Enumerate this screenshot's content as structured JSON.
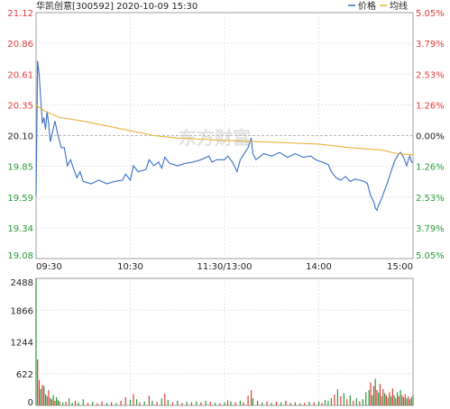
{
  "header": {
    "title": "华凯创意[300592] 2020-10-09 15:30",
    "legend_price": "价格",
    "legend_avg": "均线"
  },
  "watermark": "东方财富",
  "colors": {
    "price_line": "#3a6fc7",
    "avg_line": "#e8b23a",
    "up": "#e03b3b",
    "down": "#2a9a3a",
    "grid": "#dcdcdc",
    "axis": "#888888"
  },
  "chart_data": [
    {
      "type": "line",
      "title": "",
      "x_ticks": [
        "09:30",
        "10:30",
        "11:30/13:00",
        "14:00",
        "15:00"
      ],
      "y_ticks_left": [
        "21.12",
        "20.86",
        "20.61",
        "20.35",
        "20.10",
        "19.85",
        "19.59",
        "19.34",
        "19.08"
      ],
      "y_ticks_right": [
        "5.05%",
        "3.79%",
        "2.53%",
        "1.26%",
        "0.00%",
        "1.26%",
        "2.53%",
        "3.79%",
        "5.05%"
      ],
      "ylim": [
        19.08,
        21.12
      ],
      "prev_close": 20.1,
      "sessions_minutes": 240,
      "series": [
        {
          "name": "价格",
          "points": [
            [
              0,
              19.6
            ],
            [
              1,
              20.72
            ],
            [
              2,
              20.6
            ],
            [
              3,
              20.4
            ],
            [
              4,
              20.2
            ],
            [
              5,
              20.25
            ],
            [
              6,
              20.15
            ],
            [
              7,
              20.3
            ],
            [
              8,
              20.2
            ],
            [
              9,
              20.05
            ],
            [
              10,
              20.1
            ],
            [
              12,
              20.22
            ],
            [
              14,
              20.1
            ],
            [
              16,
              20.0
            ],
            [
              18,
              20.0
            ],
            [
              20,
              19.85
            ],
            [
              22,
              19.9
            ],
            [
              24,
              19.82
            ],
            [
              26,
              19.75
            ],
            [
              28,
              19.8
            ],
            [
              30,
              19.72
            ],
            [
              35,
              19.7
            ],
            [
              40,
              19.73
            ],
            [
              45,
              19.7
            ],
            [
              50,
              19.72
            ],
            [
              55,
              19.73
            ],
            [
              57,
              19.78
            ],
            [
              60,
              19.73
            ],
            [
              62,
              19.85
            ],
            [
              65,
              19.8
            ],
            [
              70,
              19.82
            ],
            [
              72,
              19.9
            ],
            [
              75,
              19.85
            ],
            [
              78,
              19.88
            ],
            [
              80,
              19.83
            ],
            [
              82,
              19.92
            ],
            [
              85,
              19.87
            ],
            [
              90,
              19.85
            ],
            [
              95,
              19.87
            ],
            [
              100,
              19.88
            ],
            [
              105,
              19.9
            ],
            [
              110,
              19.93
            ],
            [
              112,
              19.88
            ],
            [
              115,
              19.9
            ],
            [
              118,
              19.9
            ],
            [
              120,
              19.9
            ],
            [
              122,
              19.93
            ],
            [
              125,
              19.88
            ],
            [
              128,
              19.8
            ],
            [
              130,
              19.9
            ],
            [
              135,
              20.0
            ],
            [
              137,
              20.08
            ],
            [
              138,
              19.95
            ],
            [
              140,
              19.9
            ],
            [
              145,
              19.95
            ],
            [
              150,
              19.93
            ],
            [
              155,
              19.96
            ],
            [
              160,
              19.92
            ],
            [
              165,
              19.95
            ],
            [
              170,
              19.92
            ],
            [
              175,
              19.93
            ],
            [
              178,
              19.9
            ],
            [
              182,
              19.88
            ],
            [
              186,
              19.86
            ],
            [
              188,
              19.8
            ],
            [
              191,
              19.75
            ],
            [
              194,
              19.73
            ],
            [
              197,
              19.76
            ],
            [
              200,
              19.72
            ],
            [
              203,
              19.74
            ],
            [
              206,
              19.73
            ],
            [
              209,
              19.72
            ],
            [
              211,
              19.7
            ],
            [
              213,
              19.6
            ],
            [
              215,
              19.55
            ],
            [
              216,
              19.5
            ],
            [
              217,
              19.48
            ],
            [
              218,
              19.52
            ],
            [
              220,
              19.58
            ],
            [
              222,
              19.65
            ],
            [
              224,
              19.72
            ],
            [
              226,
              19.8
            ],
            [
              228,
              19.88
            ],
            [
              230,
              19.93
            ],
            [
              232,
              19.96
            ],
            [
              234,
              19.92
            ],
            [
              236,
              19.85
            ],
            [
              237,
              19.9
            ],
            [
              238,
              19.93
            ],
            [
              239,
              19.88
            ],
            [
              240,
              19.88
            ]
          ]
        },
        {
          "name": "均线",
          "points": [
            [
              0,
              20.35
            ],
            [
              6,
              20.3
            ],
            [
              15,
              20.25
            ],
            [
              30,
              20.22
            ],
            [
              45,
              20.18
            ],
            [
              60,
              20.14
            ],
            [
              75,
              20.1
            ],
            [
              90,
              20.08
            ],
            [
              105,
              20.07
            ],
            [
              120,
              20.06
            ],
            [
              140,
              20.05
            ],
            [
              160,
              20.04
            ],
            [
              180,
              20.03
            ],
            [
              200,
              20.0
            ],
            [
              220,
              19.98
            ],
            [
              230,
              19.95
            ],
            [
              240,
              19.94
            ]
          ]
        }
      ]
    },
    {
      "type": "bar",
      "title": "",
      "y_ticks": [
        "2488",
        "1866",
        "1244",
        "622",
        "0"
      ],
      "ylim": [
        0,
        2488
      ],
      "volume_bars": [
        [
          0,
          2488,
          "down"
        ],
        [
          1,
          900,
          "up"
        ],
        [
          2,
          500,
          "up"
        ],
        [
          3,
          320,
          "down"
        ],
        [
          4,
          400,
          "up"
        ],
        [
          5,
          380,
          "down"
        ],
        [
          6,
          220,
          "up"
        ],
        [
          7,
          180,
          "down"
        ],
        [
          8,
          300,
          "up"
        ],
        [
          9,
          150,
          "down"
        ],
        [
          10,
          120,
          "up"
        ],
        [
          11,
          200,
          "down"
        ],
        [
          12,
          90,
          "up"
        ],
        [
          13,
          160,
          "down"
        ],
        [
          14,
          110,
          "down"
        ],
        [
          15,
          80,
          "up"
        ],
        [
          17,
          60,
          "down"
        ],
        [
          19,
          70,
          "up"
        ],
        [
          21,
          140,
          "down"
        ],
        [
          23,
          50,
          "down"
        ],
        [
          25,
          90,
          "up"
        ],
        [
          27,
          60,
          "down"
        ],
        [
          30,
          120,
          "down"
        ],
        [
          33,
          50,
          "up"
        ],
        [
          36,
          70,
          "down"
        ],
        [
          39,
          40,
          "up"
        ],
        [
          42,
          80,
          "up"
        ],
        [
          45,
          50,
          "down"
        ],
        [
          48,
          60,
          "up"
        ],
        [
          51,
          45,
          "down"
        ],
        [
          54,
          90,
          "up"
        ],
        [
          57,
          160,
          "up"
        ],
        [
          60,
          110,
          "down"
        ],
        [
          62,
          220,
          "up"
        ],
        [
          64,
          120,
          "down"
        ],
        [
          66,
          60,
          "up"
        ],
        [
          69,
          80,
          "down"
        ],
        [
          72,
          190,
          "up"
        ],
        [
          74,
          90,
          "down"
        ],
        [
          77,
          70,
          "up"
        ],
        [
          80,
          140,
          "down"
        ],
        [
          82,
          230,
          "up"
        ],
        [
          84,
          110,
          "down"
        ],
        [
          87,
          60,
          "up"
        ],
        [
          90,
          90,
          "down"
        ],
        [
          93,
          50,
          "up"
        ],
        [
          96,
          70,
          "down"
        ],
        [
          99,
          60,
          "up"
        ],
        [
          102,
          80,
          "down"
        ],
        [
          105,
          60,
          "up"
        ],
        [
          108,
          90,
          "down"
        ],
        [
          111,
          70,
          "up"
        ],
        [
          114,
          50,
          "down"
        ],
        [
          117,
          40,
          "up"
        ],
        [
          120,
          60,
          "down"
        ],
        [
          122,
          100,
          "up"
        ],
        [
          124,
          80,
          "down"
        ],
        [
          127,
          60,
          "up"
        ],
        [
          130,
          90,
          "down"
        ],
        [
          132,
          60,
          "up"
        ],
        [
          135,
          190,
          "up"
        ],
        [
          137,
          300,
          "up"
        ],
        [
          138,
          140,
          "down"
        ],
        [
          141,
          90,
          "up"
        ],
        [
          144,
          60,
          "down"
        ],
        [
          147,
          80,
          "up"
        ],
        [
          150,
          50,
          "down"
        ],
        [
          153,
          70,
          "up"
        ],
        [
          156,
          60,
          "down"
        ],
        [
          159,
          90,
          "up"
        ],
        [
          162,
          50,
          "down"
        ],
        [
          165,
          60,
          "up"
        ],
        [
          168,
          40,
          "down"
        ],
        [
          171,
          50,
          "up"
        ],
        [
          174,
          70,
          "down"
        ],
        [
          177,
          60,
          "up"
        ],
        [
          180,
          80,
          "down"
        ],
        [
          182,
          50,
          "up"
        ],
        [
          184,
          110,
          "down"
        ],
        [
          186,
          90,
          "down"
        ],
        [
          188,
          140,
          "down"
        ],
        [
          190,
          210,
          "up"
        ],
        [
          192,
          320,
          "down"
        ],
        [
          194,
          180,
          "up"
        ],
        [
          196,
          240,
          "down"
        ],
        [
          198,
          120,
          "up"
        ],
        [
          200,
          200,
          "down"
        ],
        [
          202,
          90,
          "up"
        ],
        [
          204,
          140,
          "down"
        ],
        [
          206,
          80,
          "up"
        ],
        [
          208,
          120,
          "down"
        ],
        [
          210,
          260,
          "down"
        ],
        [
          212,
          300,
          "down"
        ],
        [
          213,
          450,
          "up"
        ],
        [
          214,
          200,
          "down"
        ],
        [
          215,
          380,
          "up"
        ],
        [
          216,
          520,
          "down"
        ],
        [
          217,
          300,
          "up"
        ],
        [
          218,
          250,
          "down"
        ],
        [
          219,
          420,
          "up"
        ],
        [
          220,
          180,
          "down"
        ],
        [
          221,
          320,
          "up"
        ],
        [
          222,
          240,
          "down"
        ],
        [
          223,
          200,
          "up"
        ],
        [
          224,
          150,
          "down"
        ],
        [
          225,
          260,
          "up"
        ],
        [
          226,
          180,
          "down"
        ],
        [
          227,
          330,
          "up"
        ],
        [
          228,
          200,
          "down"
        ],
        [
          229,
          140,
          "up"
        ],
        [
          230,
          260,
          "down"
        ],
        [
          231,
          180,
          "up"
        ],
        [
          232,
          300,
          "down"
        ],
        [
          233,
          200,
          "up"
        ],
        [
          234,
          160,
          "down"
        ],
        [
          235,
          220,
          "up"
        ],
        [
          236,
          140,
          "down"
        ],
        [
          237,
          180,
          "up"
        ],
        [
          238,
          120,
          "down"
        ],
        [
          239,
          160,
          "up"
        ],
        [
          240,
          200,
          "down"
        ]
      ]
    }
  ]
}
